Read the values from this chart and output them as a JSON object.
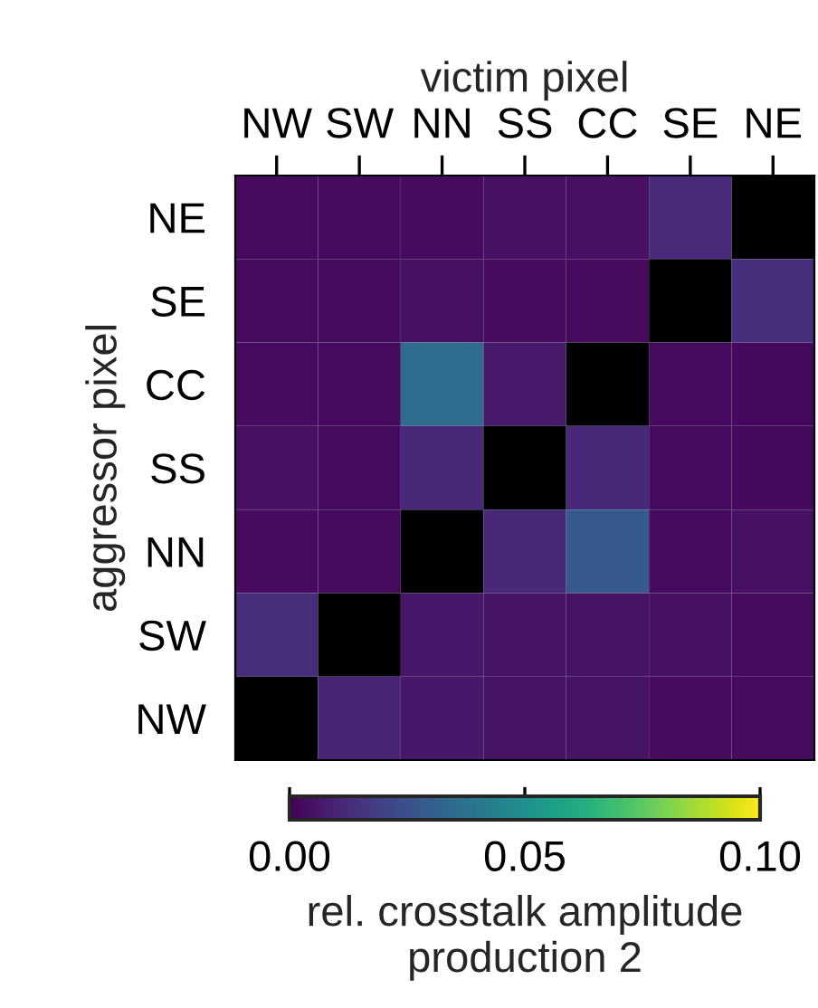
{
  "chart_data": {
    "type": "heatmap",
    "xlabel": "victim pixel",
    "ylabel": "aggressor pixel",
    "clabel": "rel. crosstalk amplitude\nproduction 2",
    "categories": [
      "NW",
      "SW",
      "NN",
      "SS",
      "CC",
      "SE",
      "NE"
    ],
    "y_categories": [
      "NE",
      "SE",
      "CC",
      "SS",
      "NN",
      "SW",
      "NW"
    ],
    "cells": [
      [
        0.003,
        0.003,
        0.003,
        0.004,
        0.004,
        0.012,
        null
      ],
      [
        0.003,
        0.003,
        0.004,
        0.003,
        0.003,
        null,
        0.013
      ],
      [
        0.003,
        0.003,
        0.035,
        0.007,
        null,
        0.003,
        0.002
      ],
      [
        0.004,
        0.003,
        0.011,
        null,
        0.011,
        0.003,
        0.002
      ],
      [
        0.003,
        0.003,
        null,
        0.011,
        0.028,
        0.003,
        0.004
      ],
      [
        0.013,
        null,
        0.006,
        0.005,
        0.005,
        0.004,
        0.003
      ],
      [
        null,
        0.01,
        0.006,
        0.005,
        0.005,
        0.003,
        0.003
      ]
    ],
    "clim": [
      0.0,
      0.1
    ],
    "cticks": [
      {
        "value": 0.0,
        "label": "0.00"
      },
      {
        "value": 0.05,
        "label": "0.05"
      },
      {
        "value": 0.1,
        "label": "0.10"
      }
    ]
  }
}
